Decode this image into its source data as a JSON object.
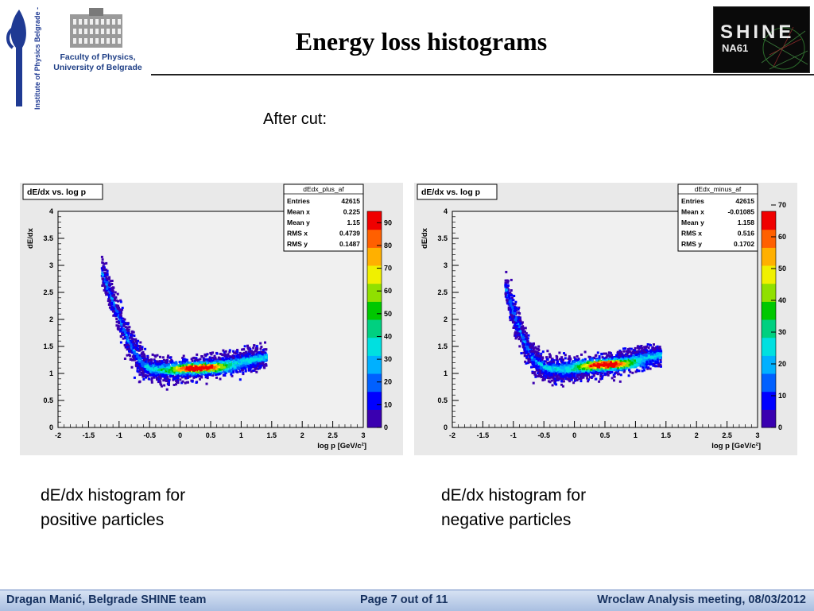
{
  "header": {
    "title": "Energy loss histograms",
    "institute_logo_text": "Institute of Physics Belgrade - Serbia",
    "faculty_line1": "Faculty of Physics,",
    "faculty_line2": "University of Belgrade",
    "shine_logo_text": "SHINE",
    "na61_logo_text": "NA61"
  },
  "subtitle": "After cut:",
  "captions": {
    "plus_line1": "dE/dx histogram for",
    "plus_line2": "positive particles",
    "minus_line1": "dE/dx histogram for",
    "minus_line2": "negative particles"
  },
  "footer": {
    "left": "Dragan Manić, Belgrade SHINE team",
    "center": "Page 7 out of 11",
    "right": "Wroclaw Analysis meeting,  08/03/2012"
  },
  "colors": {
    "frame_bg": "#e9e9e9",
    "plot_bg": "#f0f0f0",
    "palette": [
      "#3a00b0",
      "#0000ff",
      "#0060ff",
      "#00b0ff",
      "#00e0e0",
      "#00d080",
      "#00c800",
      "#90e000",
      "#f0f000",
      "#ffb000",
      "#ff6000",
      "#f00000"
    ]
  },
  "chart_data": [
    {
      "type": "heatmap",
      "title": "dE/dx vs. log p",
      "xlabel": "log p [GeV/c²]",
      "ylabel": "dE/dx",
      "xlim": [
        -2,
        3
      ],
      "ylim": [
        0,
        4
      ],
      "x_ticks": [
        "-2",
        "-1.5",
        "-1",
        "-0.5",
        "0",
        "0.5",
        "1",
        "1.5",
        "2",
        "2.5",
        "3"
      ],
      "y_ticks": [
        "0",
        "0.5",
        "1",
        "1.5",
        "2",
        "2.5",
        "3",
        "3.5",
        "4"
      ],
      "z_ticks": [
        "0",
        "10",
        "20",
        "30",
        "40",
        "50",
        "60",
        "70",
        "80",
        "90"
      ],
      "zmax": 95,
      "stats": {
        "name": "dEdx_plus_af",
        "rows": [
          {
            "label": "Entries",
            "value": "42615"
          },
          {
            "label": "Mean x",
            "value": "0.225"
          },
          {
            "label": "Mean y",
            "value": "1.15"
          },
          {
            "label": "RMS x",
            "value": "0.4739"
          },
          {
            "label": "RMS y",
            "value": "0.1487"
          }
        ]
      },
      "ridge": [
        [
          -1.3,
          2.9
        ],
        [
          -1.15,
          2.45
        ],
        [
          -1.0,
          2.0
        ],
        [
          -0.85,
          1.6
        ],
        [
          -0.7,
          1.28
        ],
        [
          -0.5,
          1.1
        ],
        [
          -0.2,
          1.06
        ],
        [
          0.2,
          1.1
        ],
        [
          0.6,
          1.18
        ],
        [
          1.0,
          1.24
        ],
        [
          1.4,
          1.32
        ]
      ],
      "hotspot": [
        0.3,
        1.12
      ]
    },
    {
      "type": "heatmap",
      "title": "dE/dx vs. log p",
      "xlabel": "log p [GeV/c²]",
      "ylabel": "dE/dx",
      "xlim": [
        -2,
        3
      ],
      "ylim": [
        0,
        4
      ],
      "x_ticks": [
        "-2",
        "-1.5",
        "-1",
        "-0.5",
        "0",
        "0.5",
        "1",
        "1.5",
        "2",
        "2.5",
        "3"
      ],
      "y_ticks": [
        "0",
        "0.5",
        "1",
        "1.5",
        "2",
        "2.5",
        "3",
        "3.5",
        "4"
      ],
      "z_ticks": [
        "0",
        "10",
        "20",
        "30",
        "40",
        "50",
        "60",
        "70"
      ],
      "zmax": 68,
      "stats": {
        "name": "dEdx_minus_af",
        "rows": [
          {
            "label": "Entries",
            "value": "42615"
          },
          {
            "label": "Mean x",
            "value": "-0.01085"
          },
          {
            "label": "Mean y",
            "value": "1.158"
          },
          {
            "label": "RMS x",
            "value": "0.516"
          },
          {
            "label": "RMS y",
            "value": "0.1702"
          }
        ]
      },
      "ridge": [
        [
          -1.15,
          2.6
        ],
        [
          -1.0,
          2.1
        ],
        [
          -0.85,
          1.65
        ],
        [
          -0.7,
          1.3
        ],
        [
          -0.5,
          1.12
        ],
        [
          -0.2,
          1.08
        ],
        [
          0.2,
          1.12
        ],
        [
          0.6,
          1.2
        ],
        [
          1.0,
          1.28
        ],
        [
          1.4,
          1.36
        ]
      ],
      "hotspot": [
        0.5,
        1.18
      ]
    }
  ]
}
